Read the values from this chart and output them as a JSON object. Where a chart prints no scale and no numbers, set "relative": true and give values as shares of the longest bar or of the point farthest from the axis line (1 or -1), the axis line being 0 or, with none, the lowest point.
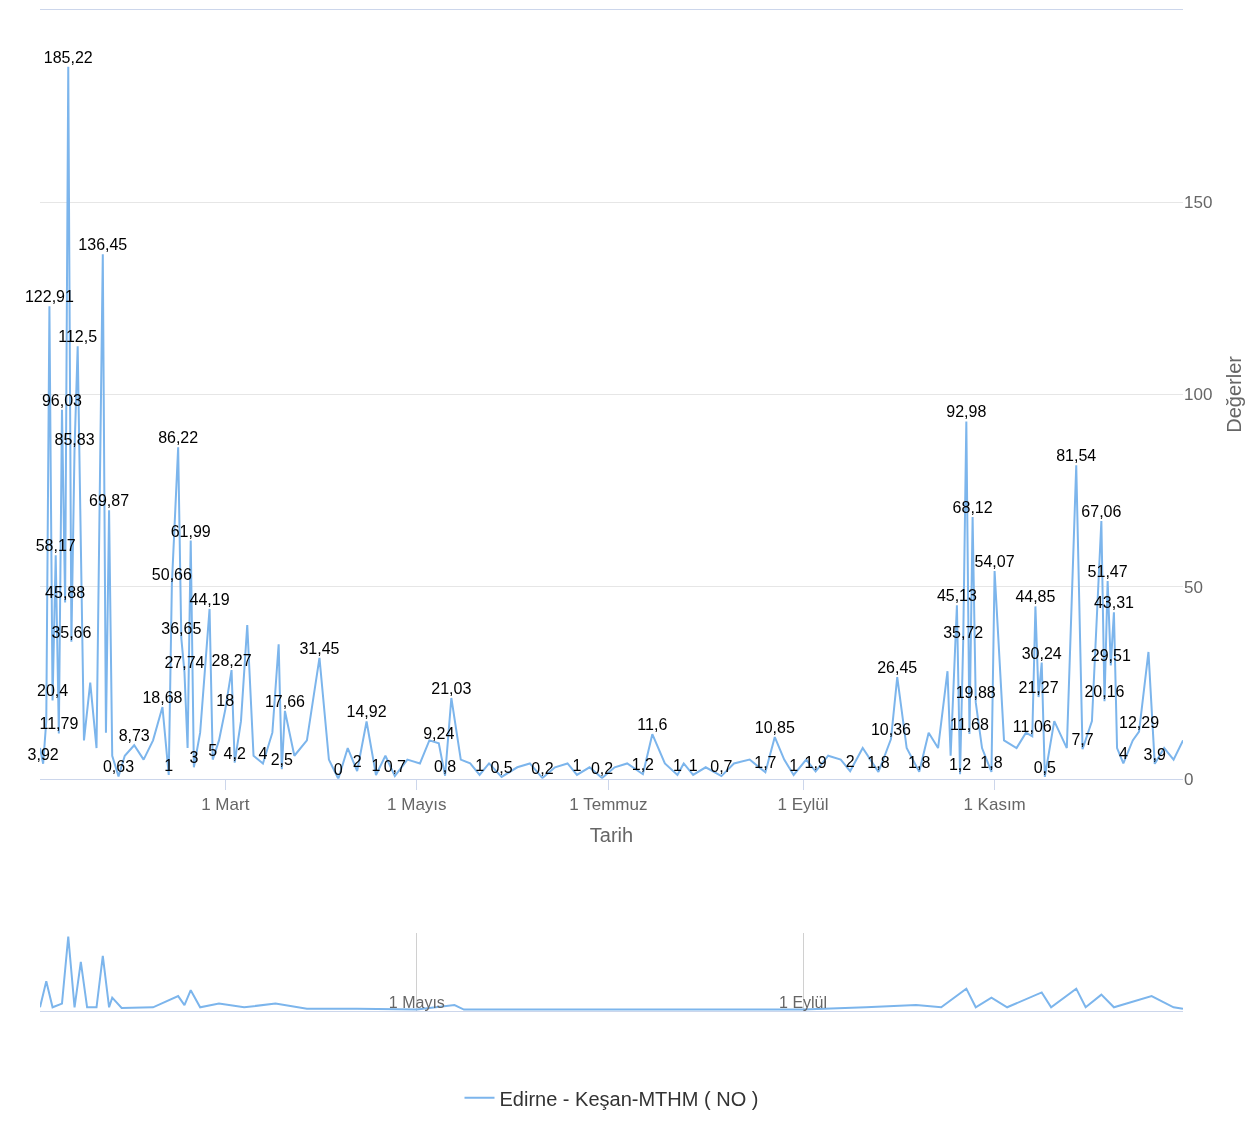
{
  "chart_data": [
    {
      "type": "line",
      "xlabel": "Tarih",
      "ylabel": "Değerler",
      "x": [
        "--01-01",
        "--01-02",
        "--01-03",
        "--01-04",
        "--01-05",
        "--01-06",
        "--01-07",
        "--01-08",
        "--01-09",
        "--01-10",
        "--01-11",
        "--01-12",
        "--01-13",
        "--01-15",
        "--01-17",
        "--01-19",
        "--01-21",
        "--01-22",
        "--01-23",
        "--01-24",
        "--01-26",
        "--01-28",
        "--01-31",
        "--02-03",
        "--02-06",
        "--02-09",
        "--02-11",
        "--02-12",
        "--02-14",
        "--02-15",
        "--02-16",
        "--02-17",
        "--02-18",
        "--02-19",
        "--02-21",
        "--02-24",
        "--02-25",
        "--02-27",
        "--03-01",
        "--03-03",
        "--03-04",
        "--03-06",
        "--03-08",
        "--03-10",
        "--03-13",
        "--03-16",
        "--03-18",
        "--03-19",
        "--03-20",
        "--03-23",
        "--03-27",
        "--03-31",
        "--04-03",
        "--04-06",
        "--04-09",
        "--04-12",
        "--04-15",
        "--04-18",
        "--04-21",
        "--04-24",
        "--04-28",
        "--05-02",
        "--05-05",
        "--05-08",
        "--05-10",
        "--05-12",
        "--05-15",
        "--05-18",
        "--05-21",
        "--05-24",
        "--05-28",
        "--06-02",
        "--06-06",
        "--06-10",
        "--06-14",
        "--06-18",
        "--06-21",
        "--06-25",
        "--06-29",
        "--07-03",
        "--07-07",
        "--07-12",
        "--07-15",
        "--07-19",
        "--07-23",
        "--07-25",
        "--07-28",
        "--08-01",
        "--08-06",
        "--08-10",
        "--08-15",
        "--08-20",
        "--08-23",
        "--08-26",
        "--08-29",
        "--09-02",
        "--09-05",
        "--09-09",
        "--09-13",
        "--09-16",
        "--09-20",
        "--09-25",
        "--09-27",
        "--09-29",
        "--10-01",
        "--10-04",
        "--10-08",
        "--10-11",
        "--10-14",
        "--10-17",
        "--10-18",
        "--10-20",
        "--10-21",
        "--10-22",
        "--10-23",
        "--10-24",
        "--10-25",
        "--10-26",
        "--10-28",
        "--10-31",
        "--11-01",
        "--11-04",
        "--11-08",
        "--11-11",
        "--11-13",
        "--11-14",
        "--11-15",
        "--11-16",
        "--11-17",
        "--11-20",
        "--11-24",
        "--11-27",
        "--11-29",
        "--12-02",
        "--12-05",
        "--12-06",
        "--12-07",
        "--12-08",
        "--12-09",
        "--12-10",
        "--12-12",
        "--12-15",
        "--12-17",
        "--12-20",
        "--12-22",
        "--12-25",
        "--12-28",
        "--12-31"
      ],
      "series": [
        {
          "name": "Edirne - Keşan-MTHM ( NO )",
          "color": "#7cb5ec",
          "values": [
            8,
            3.92,
            15,
            122.91,
            20.4,
            58.17,
            11.79,
            96.03,
            45.88,
            185.22,
            35.66,
            85.83,
            112.5,
            10,
            25,
            8,
            136.45,
            12,
            69.87,
            6,
            0.63,
            6,
            8.73,
            5,
            10,
            18.68,
            1,
            50.66,
            86.22,
            36.65,
            27.74,
            8,
            61.99,
            3,
            12,
            44.19,
            5,
            10,
            18,
            28.27,
            4.2,
            15,
            40,
            6,
            4,
            12,
            35,
            2.5,
            17.66,
            6,
            10,
            31.45,
            5,
            0,
            8,
            2,
            14.92,
            1,
            6,
            0.7,
            5,
            4,
            10,
            9.24,
            0.8,
            21.03,
            5,
            4,
            1,
            4,
            0.5,
            3,
            4,
            0.2,
            3,
            4,
            1,
            3,
            0.2,
            3,
            4,
            1.2,
            11.6,
            4,
            1,
            4,
            1,
            3,
            0.7,
            4,
            5,
            1.7,
            10.85,
            5,
            1,
            5,
            1.9,
            6,
            5,
            2,
            8,
            1.8,
            6,
            10.36,
            26.45,
            8,
            1.8,
            12,
            8,
            28,
            6,
            45.13,
            1.2,
            35.72,
            92.98,
            11.68,
            68.12,
            19.88,
            8,
            1.8,
            54.07,
            10,
            8,
            12,
            11.06,
            44.85,
            21.27,
            30.24,
            0.5,
            15,
            8,
            81.54,
            7.7,
            15,
            67.06,
            20.16,
            51.47,
            29.51,
            43.31,
            8,
            4,
            10,
            12.29,
            33,
            3.9,
            8,
            5,
            10
          ],
          "value_labels": [
            null,
            "3,92",
            null,
            "122,91",
            "20,4",
            "58,17",
            "11,79",
            "96,03",
            "45,88",
            "185,22",
            "35,66",
            "85,83",
            "112,5",
            null,
            null,
            null,
            "136,45",
            null,
            "69,87",
            null,
            "0,63",
            null,
            "8,73",
            null,
            null,
            "18,68",
            "1",
            "50,66",
            "86,22",
            "36,65",
            "27,74",
            null,
            "61,99",
            "3",
            null,
            "44,19",
            "5",
            null,
            "18",
            "28,27",
            "4,2",
            null,
            null,
            null,
            "4",
            null,
            null,
            "2,5",
            "17,66",
            null,
            null,
            "31,45",
            null,
            "0",
            null,
            "2",
            "14,92",
            "1",
            null,
            "0,7",
            null,
            null,
            null,
            "9,24",
            "0,8",
            "21,03",
            null,
            null,
            "1",
            null,
            "0,5",
            null,
            null,
            "0,2",
            null,
            null,
            "1",
            null,
            "0,2",
            null,
            null,
            "1,2",
            "11,6",
            null,
            "1",
            null,
            "1",
            null,
            "0,7",
            null,
            null,
            "1,7",
            "10,85",
            null,
            "1",
            null,
            "1,9",
            null,
            null,
            "2",
            null,
            "1,8",
            null,
            "10,36",
            "26,45",
            null,
            "1,8",
            null,
            null,
            null,
            null,
            "45,13",
            "1,2",
            "35,72",
            "92,98",
            "11,68",
            "68,12",
            "19,88",
            null,
            "1,8",
            "54,07",
            null,
            null,
            null,
            "11,06",
            "44,85",
            "21,27",
            "30,24",
            "0,5",
            null,
            null,
            "81,54",
            "7,7",
            null,
            "67,06",
            "20,16",
            "51,47",
            "29,51",
            "43,31",
            null,
            "4",
            null,
            "12,29",
            null,
            "3,9",
            null,
            null,
            null
          ]
        }
      ],
      "xlim": [
        "--01-01",
        "--12-31"
      ],
      "xticks": [
        {
          "value": "--03-01",
          "label": "1 Mart"
        },
        {
          "value": "--05-01",
          "label": "1 Mayıs"
        },
        {
          "value": "--07-01",
          "label": "1 Temmuz"
        },
        {
          "value": "--09-01",
          "label": "1 Eylül"
        },
        {
          "value": "--11-01",
          "label": "1 Kasım"
        }
      ],
      "ylim": [
        0,
        200
      ],
      "yticks": [
        0,
        50,
        100,
        150
      ],
      "grid": "y",
      "legend": "bottom"
    },
    {
      "type": "line",
      "relative": true,
      "x": [
        "--01-01",
        "--01-03",
        "--01-05",
        "--01-08",
        "--01-10",
        "--01-12",
        "--01-14",
        "--01-16",
        "--01-19",
        "--01-21",
        "--01-23",
        "--01-24",
        "--01-27",
        "--02-06",
        "--02-14",
        "--02-16",
        "--02-18",
        "--02-21",
        "--02-27",
        "--03-07",
        "--03-17",
        "--03-27",
        "--04-12",
        "--05-01",
        "--05-13",
        "--05-16",
        "--06-16",
        "--07-18",
        "--08-03",
        "--09-01",
        "--09-21",
        "--10-07",
        "--10-15",
        "--10-23",
        "--10-26",
        "--10-31",
        "--11-05",
        "--11-16",
        "--11-19",
        "--11-27",
        "--11-30",
        "--12-05",
        "--12-09",
        "--12-21",
        "--12-28",
        "--12-31"
      ],
      "series": [
        {
          "color": "#7cb5ec",
          "values": [
            0.05,
            0.4,
            0.05,
            0.1,
            1,
            0.05,
            0.66,
            0.05,
            0.05,
            0.74,
            0.05,
            0.18,
            0.04,
            0.05,
            0.2,
            0.08,
            0.28,
            0.05,
            0.1,
            0.05,
            0.1,
            0.03,
            0.03,
            0.02,
            0.08,
            0.02,
            0.02,
            0.02,
            0.02,
            0.02,
            0.05,
            0.08,
            0.05,
            0.3,
            0.05,
            0.18,
            0.05,
            0.25,
            0.05,
            0.3,
            0.05,
            0.22,
            0.05,
            0.2,
            0.05,
            0.03
          ]
        }
      ],
      "xlim": [
        "--01-01",
        "--12-31"
      ],
      "xticks": [
        {
          "value": "--05-01",
          "label": "1 Mayıs"
        },
        {
          "value": "--09-01",
          "label": "1 Eylül"
        }
      ],
      "grid": "x"
    }
  ]
}
